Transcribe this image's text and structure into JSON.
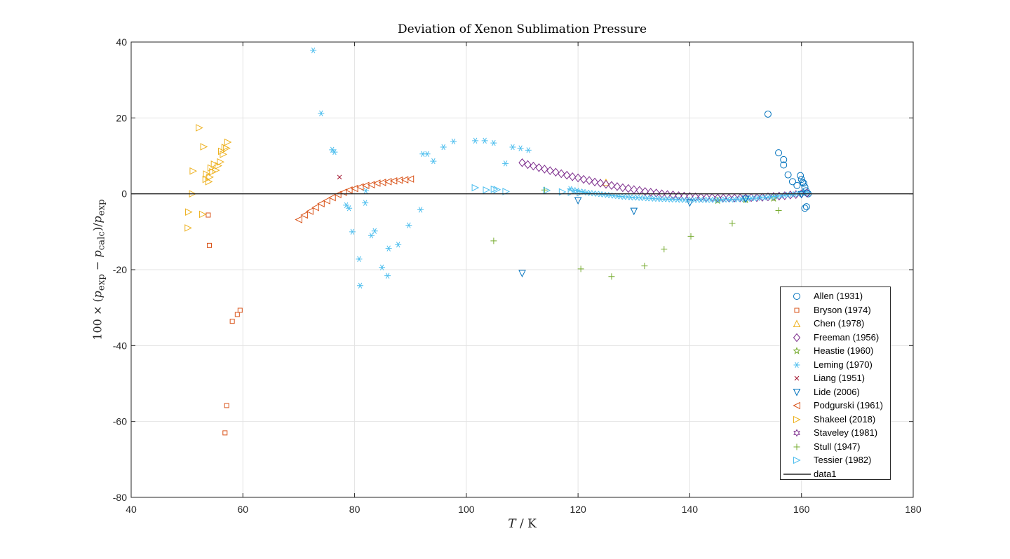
{
  "chart_data": {
    "type": "scatter",
    "title": "Deviation of Xenon Sublimation Pressure",
    "xlabel": "T / K",
    "ylabel": "100 × (p_exp − p_calc)/p_exp",
    "xlim": [
      40,
      180
    ],
    "ylim": [
      -80,
      40
    ],
    "xticks": [
      40,
      60,
      80,
      100,
      120,
      140,
      160,
      180
    ],
    "yticks": [
      -80,
      -60,
      -40,
      -20,
      0,
      20,
      40
    ],
    "xtick_labels": [
      "40",
      "60",
      "80",
      "100",
      "120",
      "140",
      "160",
      "180"
    ],
    "ytick_labels": [
      "-80",
      "-60",
      "-40",
      "-20",
      "0",
      "20",
      "40"
    ],
    "grid": true,
    "legend_position": "bottom-right",
    "series": [
      {
        "name": "Allen (1931)",
        "marker": "circle",
        "color": "#0072BD",
        "x": [
          154.0,
          155.9,
          156.8,
          156.8,
          157.6,
          158.4,
          159.2,
          159.8,
          160.0,
          160.2,
          160.4,
          160.6,
          160.8,
          161.0,
          161.2,
          160.6,
          160.9
        ],
        "y": [
          21.0,
          10.8,
          9.0,
          7.6,
          5.0,
          3.2,
          2.2,
          4.8,
          3.8,
          3.0,
          2.8,
          1.8,
          0.8,
          0.2,
          0.0,
          -3.8,
          -3.4
        ]
      },
      {
        "name": "Bryson (1974)",
        "marker": "square",
        "color": "#D95319",
        "x": [
          53.8,
          54.0,
          58.1,
          59.0,
          59.5,
          57.1,
          56.8
        ],
        "y": [
          -5.6,
          -13.6,
          -33.6,
          -31.8,
          -30.7,
          -55.8,
          -63.0
        ]
      },
      {
        "name": "Chen (1978)",
        "marker": "triangle-up",
        "color": "#EDB120",
        "x": [
          125.0
        ],
        "y": [
          3.0
        ]
      },
      {
        "name": "Freeman (1956)",
        "marker": "diamond",
        "color": "#7E2F8E",
        "x": [
          110.0,
          111.0,
          112.0,
          113.0,
          114.0,
          115.0,
          116.0,
          117.0,
          118.0,
          119.0,
          120.0,
          121.0,
          122.0,
          123.0,
          124.0,
          125.0,
          126.0,
          127.0,
          128.0,
          129.0,
          130.0,
          131.0,
          132.0,
          133.0,
          134.0,
          135.0,
          136.0,
          137.0,
          138.0,
          139.0,
          140.0,
          141.0,
          142.0,
          143.0,
          144.0,
          145.0,
          146.0,
          147.0,
          148.0,
          149.0,
          150.0,
          151.0,
          152.0,
          153.0,
          154.0,
          155.0,
          156.0,
          157.0,
          158.0,
          159.0,
          160.0,
          161.0
        ],
        "y": [
          8.2,
          7.7,
          7.3,
          6.9,
          6.5,
          6.1,
          5.7,
          5.3,
          4.9,
          4.5,
          4.2,
          3.8,
          3.5,
          3.1,
          2.8,
          2.5,
          2.2,
          1.9,
          1.6,
          1.4,
          1.1,
          0.9,
          0.6,
          0.4,
          0.2,
          0.0,
          -0.2,
          -0.3,
          -0.5,
          -0.6,
          -0.7,
          -0.8,
          -0.9,
          -1.0,
          -1.0,
          -1.1,
          -1.1,
          -1.1,
          -1.1,
          -1.1,
          -1.1,
          -1.0,
          -1.0,
          -0.9,
          -0.8,
          -0.7,
          -0.6,
          -0.5,
          -0.3,
          -0.2,
          0.0,
          0.2
        ]
      },
      {
        "name": "Heastie (1960)",
        "marker": "star",
        "color": "#77AC30",
        "x": [
          145.0,
          150.0,
          155.0
        ],
        "y": [
          -1.8,
          -1.6,
          -1.2
        ]
      },
      {
        "name": "Leming (1970)",
        "marker": "asterisk",
        "color": "#4DBEEE",
        "x": [
          72.6,
          74.0,
          76.0,
          76.4,
          78.5,
          79.0,
          79.6,
          80.8,
          81.0,
          81.9,
          82.0,
          83.0,
          83.6,
          84.9,
          85.9,
          86.1,
          87.8,
          89.7,
          91.8,
          92.2,
          93.0,
          94.1,
          95.9,
          97.7,
          101.6,
          103.3,
          104.9,
          107.0,
          108.3,
          109.7,
          111.1,
          118.6,
          119.2,
          119.8,
          120.4,
          121.0,
          121.6,
          122.2,
          122.8,
          123.4,
          124.0,
          124.6,
          125.2,
          125.8,
          126.4,
          127.0,
          127.6,
          128.2,
          128.8,
          129.4,
          130.0,
          130.6,
          131.2,
          131.8,
          132.4,
          133.0,
          133.6,
          134.2,
          134.8,
          135.4,
          136.0,
          136.6,
          137.2,
          137.8,
          138.4,
          139.0,
          139.6,
          140.2,
          140.8,
          141.4,
          142.0,
          142.6,
          143.2,
          143.8,
          144.4,
          145.0,
          145.6,
          146.2,
          146.8,
          147.4,
          148.0,
          148.6,
          149.2,
          149.8,
          150.4,
          151.0,
          151.6,
          152.2,
          152.8,
          153.4,
          154.0,
          154.6,
          155.2,
          155.8,
          156.4,
          157.0,
          157.6,
          158.2,
          158.8,
          159.4,
          160.0,
          160.6,
          161.2
        ],
        "y": [
          37.8,
          21.2,
          11.6,
          11.0,
          -3.0,
          -3.8,
          -10.0,
          -17.2,
          -24.2,
          -2.4,
          0.8,
          -11.0,
          -9.8,
          -19.4,
          -21.6,
          -14.4,
          -13.4,
          -8.3,
          -4.2,
          10.5,
          10.5,
          8.6,
          12.3,
          13.8,
          14.0,
          14.0,
          13.4,
          8.0,
          12.3,
          12.0,
          11.5,
          1.3,
          1.0,
          0.8,
          0.6,
          0.5,
          0.3,
          0.2,
          0.1,
          0.0,
          -0.1,
          -0.2,
          -0.3,
          -0.4,
          -0.5,
          -0.6,
          -0.7,
          -0.8,
          -0.8,
          -0.9,
          -1.0,
          -1.0,
          -1.1,
          -1.1,
          -1.2,
          -1.2,
          -1.3,
          -1.3,
          -1.4,
          -1.4,
          -1.4,
          -1.5,
          -1.5,
          -1.5,
          -1.6,
          -1.6,
          -1.6,
          -1.6,
          -1.6,
          -1.6,
          -1.6,
          -1.6,
          -1.6,
          -1.6,
          -1.6,
          -1.6,
          -1.6,
          -1.5,
          -1.5,
          -1.5,
          -1.5,
          -1.4,
          -1.4,
          -1.3,
          -1.3,
          -1.2,
          -1.2,
          -1.1,
          -1.0,
          -1.0,
          -0.9,
          -0.8,
          -0.7,
          -0.6,
          -0.5,
          -0.4,
          -0.3,
          -0.2,
          -0.1,
          0.0,
          0.1,
          0.2,
          0.3
        ]
      },
      {
        "name": "Liang (1951)",
        "marker": "x",
        "color": "#A2142F",
        "x": [
          77.3
        ],
        "y": [
          4.4
        ]
      },
      {
        "name": "Lide (2006)",
        "marker": "triangle-down",
        "color": "#0072BD",
        "x": [
          110.0,
          120.0,
          130.0,
          140.0,
          150.0,
          160.0
        ],
        "y": [
          -21.0,
          -1.8,
          -4.6,
          -2.4,
          -1.4,
          -0.2
        ]
      },
      {
        "name": "Podgurski (1961)",
        "marker": "triangle-left",
        "color": "#D95319",
        "x": [
          70.0,
          71.0,
          72.0,
          73.0,
          74.0,
          75.0,
          76.0,
          77.0,
          78.0,
          79.0,
          80.0,
          81.0,
          82.0,
          83.0,
          84.0,
          85.0,
          86.0,
          87.0,
          88.0,
          89.0,
          90.0
        ],
        "y": [
          -6.8,
          -5.6,
          -4.6,
          -3.6,
          -2.6,
          -1.8,
          -1.0,
          -0.2,
          0.4,
          1.0,
          1.4,
          1.8,
          2.2,
          2.4,
          2.8,
          3.0,
          3.2,
          3.4,
          3.6,
          3.7,
          3.9
        ]
      },
      {
        "name": "Shakeel (2018)",
        "marker": "triangle-right",
        "color": "#EDB120",
        "x": [
          50.2,
          50.3,
          51.0,
          51.1,
          52.2,
          52.8,
          53.0,
          53.4,
          53.5,
          53.9,
          54.1,
          54.3,
          54.6,
          54.9,
          55.2,
          55.6,
          56.0,
          56.2,
          56.5,
          56.8,
          57.1,
          57.3
        ],
        "y": [
          -9.0,
          -4.8,
          0.0,
          6.0,
          17.4,
          -5.4,
          12.4,
          3.8,
          5.2,
          3.2,
          4.4,
          6.8,
          5.8,
          7.8,
          6.2,
          7.4,
          8.4,
          11.2,
          10.4,
          12.2,
          12.0,
          13.6
        ]
      },
      {
        "name": "Staveley (1981)",
        "marker": "hexagram",
        "color": "#7E2F8E",
        "x": [],
        "y": []
      },
      {
        "name": "Stull (1947)",
        "marker": "plus",
        "color": "#77AC30",
        "x": [
          104.9,
          114.0,
          120.5,
          126.0,
          131.9,
          135.4,
          140.2,
          147.6,
          155.9
        ],
        "y": [
          -12.4,
          1.0,
          -19.8,
          -21.8,
          -19.0,
          -14.6,
          -11.2,
          -7.8,
          -4.4
        ]
      },
      {
        "name": "Tessier (1982)",
        "marker": "triangle-right",
        "color": "#4DBEEE",
        "x": [
          101.6,
          103.6,
          105.0,
          105.5,
          107.1,
          114.4,
          117.2,
          118.8,
          120.4
        ],
        "y": [
          1.6,
          1.0,
          1.2,
          1.1,
          0.6,
          0.9,
          0.5,
          0.4,
          0.3
        ]
      },
      {
        "name": "data1",
        "marker": "line",
        "color": "#262626",
        "x": [
          40,
          180
        ],
        "y": [
          0,
          0
        ]
      }
    ]
  }
}
